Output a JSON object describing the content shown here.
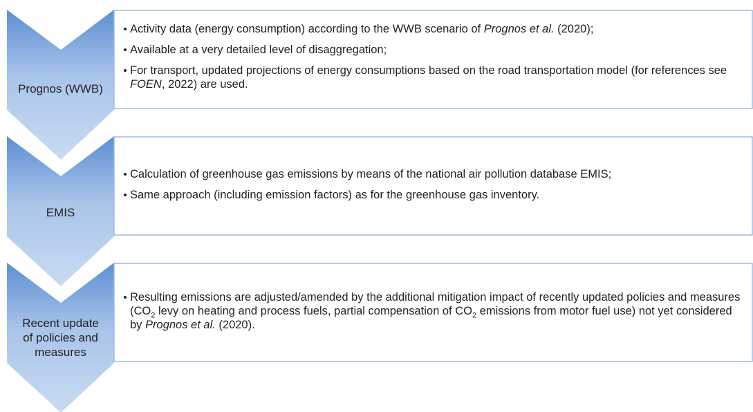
{
  "steps": [
    {
      "label_lines": [
        "Prognos (WWB)"
      ],
      "bullets": [
        [
          {
            "text": "Activity data (energy consumption) according to the WWB scenario of "
          },
          {
            "text": "Prognos et al.",
            "italic": true
          },
          {
            "text": " (2020);"
          }
        ],
        [
          {
            "text": "Available at a very detailed level of disaggregation;"
          }
        ],
        [
          {
            "text": "For transport, updated projections of energy consumptions based on the road transportation model (for references see "
          },
          {
            "text": "FOEN",
            "italic": true
          },
          {
            "text": ", 2022) are used."
          }
        ]
      ]
    },
    {
      "label_lines": [
        "EMIS"
      ],
      "bullets": [
        [
          {
            "text": "Calculation of greenhouse gas emissions by means of the national air pollution database EMIS;"
          }
        ],
        [
          {
            "text": "Same approach (including emission factors) as for the greenhouse gas inventory."
          }
        ]
      ]
    },
    {
      "label_lines": [
        "Recent update",
        "of policies and",
        "measures"
      ],
      "bullets": [
        [
          {
            "text": "Resulting emissions are adjusted/amended by the additional mitigation impact of recently updated policies and measures (CO"
          },
          {
            "text": "2",
            "sub": true
          },
          {
            "text": " levy on heating and process fuels, partial compensation of CO"
          },
          {
            "text": "2",
            "sub": true
          },
          {
            "text": " emissions from motor fuel use) not yet considered by "
          },
          {
            "text": "Prognos et al.",
            "italic": true
          },
          {
            "text": " (2020)."
          }
        ]
      ]
    }
  ]
}
